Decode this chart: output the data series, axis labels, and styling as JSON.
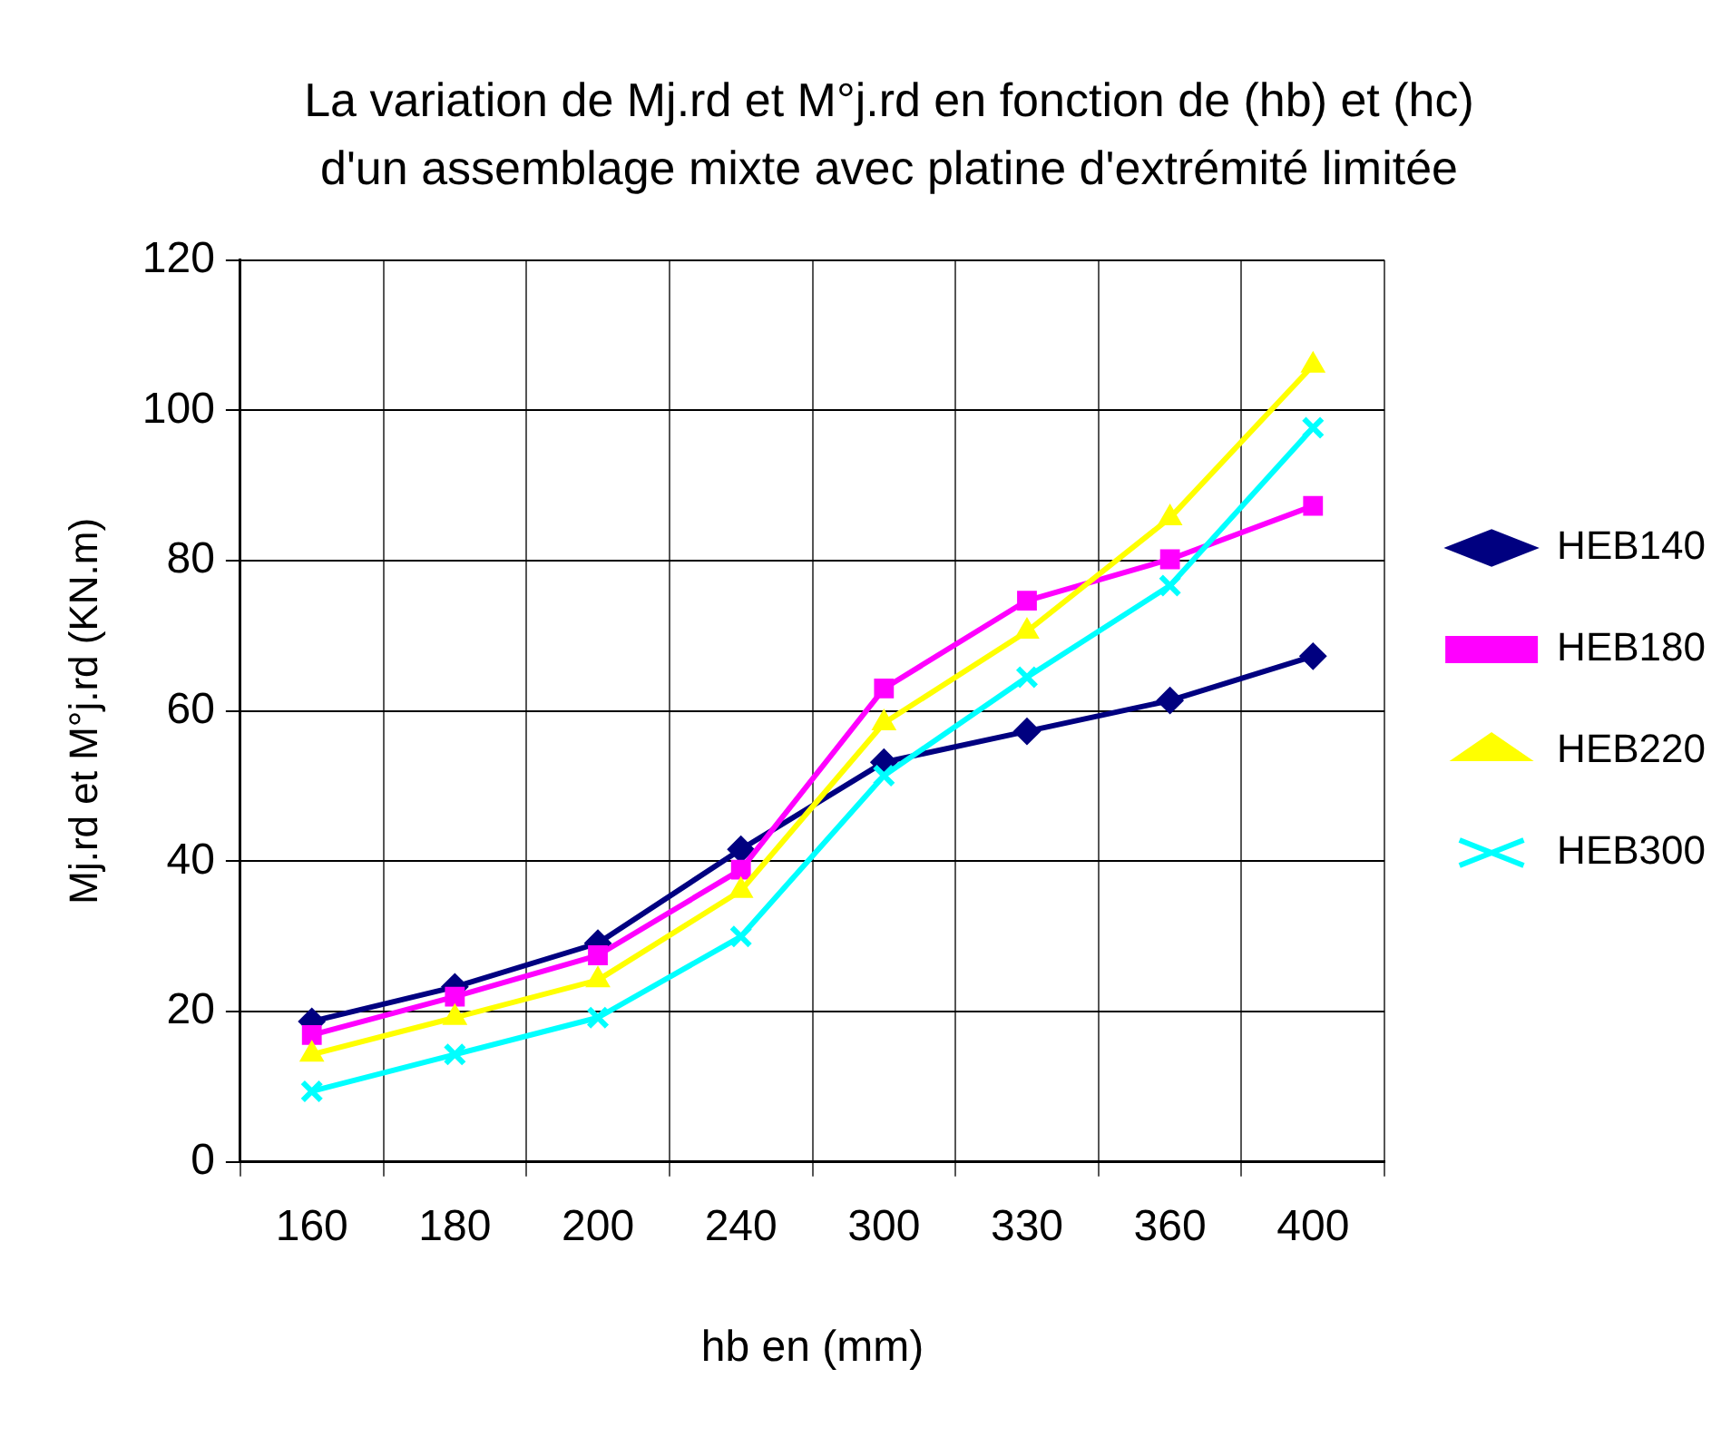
{
  "chart_data": {
    "type": "line",
    "title": "La variation de Mj.rd et M°j.rd en fonction de (hb) et (hc) d'un assemblage mixte avec platine d'extrémité limitée",
    "xlabel": "hb en (mm)",
    "ylabel": "Mj.rd et M°j.rd (KN.m)",
    "categories": [
      "160",
      "180",
      "200",
      "240",
      "300",
      "330",
      "360",
      "400"
    ],
    "ylim": [
      0,
      120
    ],
    "yticks": [
      0,
      20,
      40,
      60,
      80,
      100,
      120
    ],
    "grid": true,
    "legend": "right",
    "series": [
      {
        "name": "HEB140",
        "color": "#000080",
        "marker": "diamond",
        "values": [
          18.7,
          23.3,
          29.1,
          41.6,
          53.2,
          57.3,
          61.4,
          67.3
        ]
      },
      {
        "name": "HEB180",
        "color": "#ff00ff",
        "marker": "square",
        "values": [
          16.9,
          22,
          27.5,
          38.9,
          63,
          74.7,
          80.2,
          87.3
        ]
      },
      {
        "name": "HEB220",
        "color": "#ffff00",
        "marker": "triangle",
        "values": [
          14.3,
          19.2,
          24.2,
          36.1,
          58.4,
          70.6,
          85.7,
          106
        ]
      },
      {
        "name": "HEB300",
        "color": "#00ffff",
        "marker": "cross",
        "values": [
          9.4,
          14.3,
          19.2,
          30,
          51.4,
          64.5,
          76.7,
          97.7
        ]
      }
    ]
  }
}
